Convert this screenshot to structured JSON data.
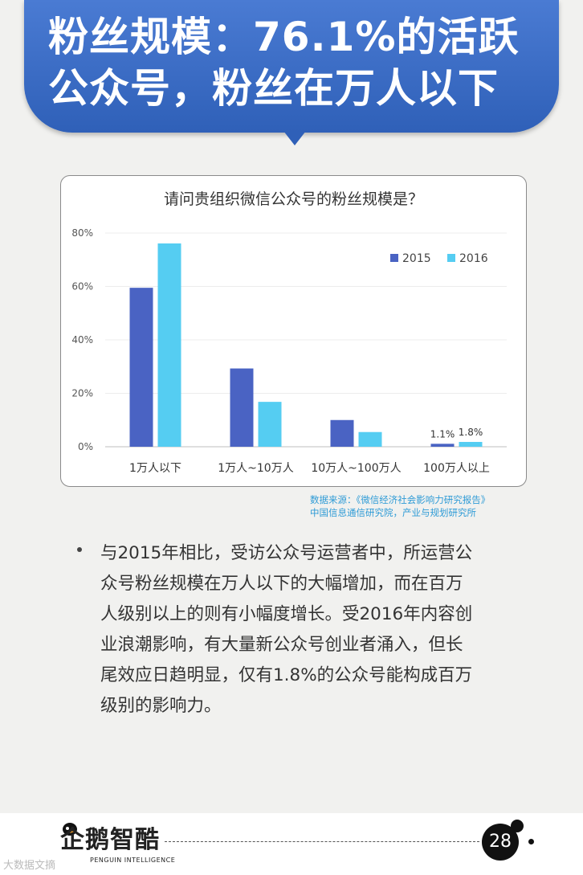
{
  "banner": {
    "title_line1": "粉丝规模：76.1%的活跃",
    "title_line2": "公众号，粉丝在万人以下"
  },
  "colors": {
    "banner": "#3a6cc6",
    "series_2015": "#4a63c3",
    "series_2016": "#55cdf2",
    "source_text": "#2e9bd6"
  },
  "chart_data": {
    "type": "bar",
    "title": "请问贵组织微信公众号的粉丝规模是？",
    "categories": [
      "1万人以下",
      "1万人~10万人",
      "10万人~100万人",
      "100万人以上"
    ],
    "series": [
      {
        "name": "2015",
        "values": [
          59.5,
          29.3,
          10.0,
          1.1
        ],
        "color": "#4a63c3"
      },
      {
        "name": "2016",
        "values": [
          76.1,
          16.8,
          5.5,
          1.8
        ],
        "color": "#55cdf2"
      }
    ],
    "data_labels": {
      "2015": [
        "",
        "",
        "",
        "1.1%"
      ],
      "2016": [
        "",
        "",
        "",
        "1.8%"
      ]
    },
    "ylim": [
      0,
      80
    ],
    "yticks": [
      "0%",
      "20%",
      "40%",
      "60%",
      "80%"
    ],
    "ytick_values": [
      0,
      20,
      40,
      60,
      80
    ],
    "legend_position": "top-right",
    "grid": true
  },
  "source": {
    "line1": "数据来源：《微信经济社会影响力研究报告》",
    "line2": "中国信息通信研究院，产业与规划研究所"
  },
  "body": {
    "lines": [
      "与2015年相比，受访公众号运营者中，所运营公",
      "众号粉丝规模在万人以下的大幅增加，而在百万",
      "人级别以上的则有小幅度增长。受2016年内容创",
      "业浪潮影响，有大量新公众号创业者涌入，但长",
      "尾效应日趋明显，仅有1.8%的公众号能构成百万",
      "级别的影响力。"
    ]
  },
  "footer": {
    "logo_cn": "企鹅智酷",
    "logo_en": "PENGUIN INTELLIGENCE",
    "page_number": "28",
    "watermark": "大数据文摘"
  }
}
